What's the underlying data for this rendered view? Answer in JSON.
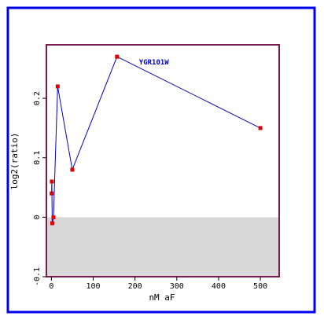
{
  "colors": {
    "frame": "#0000ee",
    "plot_border": "#7a1a4e",
    "negative_band": "#d8d8d8",
    "line": "#0000cc",
    "point": "#dd0000",
    "series_label": "#0000cc",
    "text": "#000000"
  },
  "chart_data": {
    "type": "line",
    "title": "",
    "xlabel": "nM aF",
    "ylabel": "log2(ratio)",
    "xlim": [
      -12,
      545
    ],
    "ylim": [
      -0.1,
      0.29
    ],
    "x_ticks": [
      0,
      100,
      200,
      300,
      400,
      500
    ],
    "x_tick_labels": [
      "0",
      "100",
      "200",
      "300",
      "400",
      "500"
    ],
    "y_ticks": [
      -0.1,
      0,
      0.1,
      0.2
    ],
    "y_tick_labels": [
      "-0.1",
      "0",
      "0.1",
      "0.2"
    ],
    "shaded_region": {
      "y_from": -0.1,
      "y_to": 0
    },
    "series": [
      {
        "name": "YGR101W",
        "points": [
          [
            0.5,
            0.04
          ],
          [
            1,
            0.06
          ],
          [
            2,
            -0.01
          ],
          [
            5,
            0.0
          ],
          [
            15,
            0.22
          ],
          [
            50,
            0.08
          ],
          [
            157,
            0.27
          ],
          [
            500,
            0.15
          ]
        ]
      }
    ]
  }
}
